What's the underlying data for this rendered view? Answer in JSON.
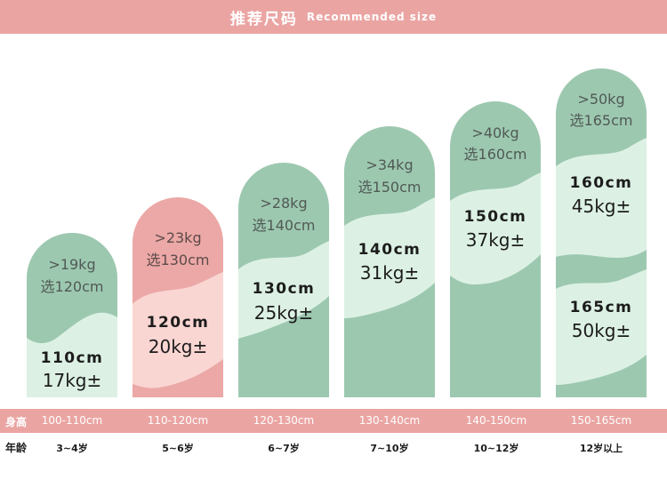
{
  "header": {
    "title_cn": "推荐尺码",
    "title_en": "Recommended size"
  },
  "colors": {
    "green_dark": "#9dc8b0",
    "green_light": "#dcf1e4",
    "pink_dark": "#eba8a6",
    "pink_light": "#fad6d3",
    "band": "#eaa5a3"
  },
  "cards": [
    {
      "theme": "green",
      "min_weight": ">19kg",
      "pick": "选120cm",
      "height": "110cm",
      "weight": "17kg±"
    },
    {
      "theme": "pink",
      "min_weight": ">23kg",
      "pick": "选130cm",
      "height": "120cm",
      "weight": "20kg±"
    },
    {
      "theme": "green",
      "min_weight": ">28kg",
      "pick": "选140cm",
      "height": "130cm",
      "weight": "25kg±"
    },
    {
      "theme": "green",
      "min_weight": ">34kg",
      "pick": "选150cm",
      "height": "140cm",
      "weight": "31kg±"
    },
    {
      "theme": "green",
      "min_weight": ">40kg",
      "pick": "选160cm",
      "height": "150cm",
      "weight": "37kg±"
    },
    {
      "theme": "green",
      "min_weight": ">50kg",
      "pick": "选165cm",
      "height": "160cm",
      "weight": "45kg±",
      "height2": "165cm",
      "weight2": "50kg±"
    }
  ],
  "table": {
    "height_label": "身高",
    "age_label": "年龄",
    "heights": [
      "100-110cm",
      "110-120cm",
      "120-130cm",
      "130-140cm",
      "140-150cm",
      "150-165cm"
    ],
    "ages": [
      "3~4岁",
      "5~6岁",
      "6~7岁",
      "7~10岁",
      "10~12岁",
      "12岁以上"
    ]
  }
}
